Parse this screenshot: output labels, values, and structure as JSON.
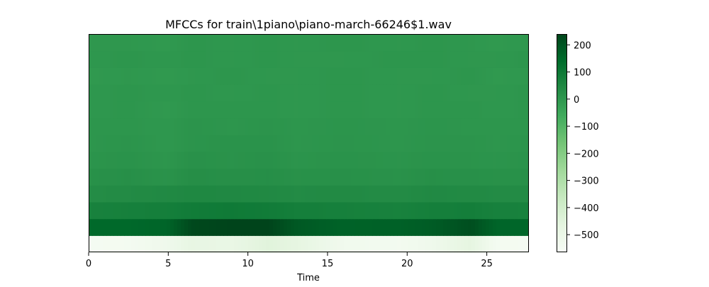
{
  "chart_data": {
    "type": "heatmap",
    "title": "MFCCs for train\\1piano\\piano-march-66246$1.wav",
    "xlabel": "Time",
    "ylabel": "",
    "xlim": [
      0,
      27.6
    ],
    "x_ticks": [
      0,
      5,
      10,
      15,
      20,
      25
    ],
    "x_tick_labels": [
      "0",
      "5",
      "10",
      "15",
      "20",
      "25"
    ],
    "n_coefficients": 13,
    "y_ticks_visible": false,
    "colormap": "Greens",
    "colorbar": {
      "range": [
        -565,
        240
      ],
      "ticks": [
        200,
        100,
        0,
        -100,
        -200,
        -300,
        -400,
        -500
      ],
      "tick_labels": [
        "200",
        "100",
        "0",
        "−100",
        "−200",
        "−300",
        "−400",
        "−500"
      ],
      "placement": "right"
    },
    "time_keys": [
      0,
      2.5,
      4.9,
      6.5,
      9,
      11.3,
      13,
      16,
      19.5,
      21.5,
      24,
      25.6,
      27.6
    ],
    "coefficient_profiles": [
      {
        "coefficient": 1,
        "values": [
          -550,
          -545,
          -520,
          -480,
          -490,
          -450,
          -470,
          -530,
          -540,
          -520,
          -470,
          -545,
          -550
        ]
      },
      {
        "coefficient": 2,
        "values": [
          150,
          150,
          160,
          230,
          240,
          240,
          190,
          165,
          170,
          180,
          215,
          160,
          155
        ]
      },
      {
        "coefficient": 3,
        "values": [
          70,
          75,
          80,
          90,
          95,
          90,
          80,
          75,
          70,
          78,
          82,
          72,
          70
        ]
      },
      {
        "coefficient": 4,
        "values": [
          35,
          40,
          45,
          50,
          48,
          45,
          40,
          42,
          38,
          45,
          42,
          40,
          38
        ]
      },
      {
        "coefficient": 5,
        "values": [
          20,
          25,
          15,
          30,
          25,
          28,
          20,
          22,
          18,
          25,
          22,
          20,
          22
        ]
      },
      {
        "coefficient": 6,
        "values": [
          10,
          15,
          5,
          20,
          15,
          20,
          10,
          15,
          10,
          15,
          12,
          10,
          15
        ]
      },
      {
        "coefficient": 7,
        "values": [
          5,
          10,
          0,
          10,
          15,
          15,
          5,
          10,
          5,
          10,
          10,
          5,
          10
        ]
      },
      {
        "coefficient": 8,
        "values": [
          5,
          5,
          0,
          10,
          5,
          10,
          5,
          8,
          5,
          8,
          5,
          5,
          5
        ]
      },
      {
        "coefficient": 9,
        "values": [
          0,
          5,
          -5,
          5,
          5,
          5,
          0,
          5,
          0,
          5,
          5,
          0,
          5
        ]
      },
      {
        "coefficient": 10,
        "values": [
          0,
          5,
          0,
          5,
          0,
          5,
          0,
          5,
          0,
          5,
          0,
          0,
          5
        ]
      },
      {
        "coefficient": 11,
        "values": [
          -5,
          0,
          -5,
          0,
          5,
          0,
          0,
          5,
          0,
          0,
          5,
          -5,
          0
        ]
      },
      {
        "coefficient": 12,
        "values": [
          0,
          5,
          0,
          5,
          0,
          5,
          0,
          0,
          5,
          5,
          0,
          0,
          5
        ]
      },
      {
        "coefficient": 13,
        "values": [
          0,
          0,
          -5,
          5,
          0,
          5,
          0,
          5,
          0,
          5,
          0,
          -5,
          0
        ]
      }
    ]
  }
}
